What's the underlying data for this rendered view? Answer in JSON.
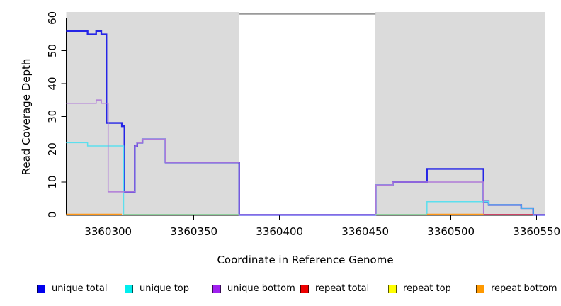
{
  "figure": {
    "xlabel": "Coordinate in Reference Genome",
    "ylabel": "Read Coverage Depth"
  },
  "chart_data": {
    "type": "line",
    "subtype": "step-coverage-plot",
    "title": "",
    "xlabel": "Coordinate in Reference Genome",
    "ylabel": "Read Coverage Depth",
    "xlim": [
      3360275.5,
      3360555
    ],
    "ylim": [
      0,
      62
    ],
    "x_ticks": [
      "3360300",
      "3360350",
      "3360400",
      "3360450",
      "3360500",
      "3360550"
    ],
    "y_ticks": [
      "0",
      "10",
      "20",
      "30",
      "40",
      "50",
      "60"
    ],
    "grid": false,
    "legend_position": "bottom",
    "panel_regions": [
      {
        "name": "covered-region-left",
        "x1": 3360275.5,
        "x2": 3360376.5,
        "fill": "#dbdbdb"
      },
      {
        "name": "covered-region-right",
        "x1": 3360456,
        "x2": 3360555,
        "fill": "#dbdbdb"
      }
    ],
    "gap_top_bar": {
      "name": "gap-top-border",
      "x1": 3360376.5,
      "x2": 3360456,
      "y": 61.2,
      "color": "#9a9a9a"
    },
    "series": [
      {
        "name": "unique total",
        "color": "#2525e6",
        "width": 2.3,
        "steps": [
          [
            3360275.5,
            56
          ],
          [
            3360288,
            55
          ],
          [
            3360293,
            56
          ],
          [
            3360296,
            55
          ],
          [
            3360299,
            28
          ],
          [
            3360308,
            27
          ],
          [
            3360309.5,
            7
          ],
          [
            3360315.5,
            21
          ],
          [
            3360317,
            22
          ],
          [
            3360320,
            23
          ],
          [
            3360333.5,
            16
          ],
          [
            3360376.5,
            0
          ],
          [
            3360456,
            9
          ],
          [
            3360466,
            10
          ],
          [
            3360486,
            14
          ],
          [
            3360519,
            4
          ],
          [
            3360522,
            3
          ],
          [
            3360541,
            2
          ],
          [
            3360548,
            0
          ],
          [
            3360555,
            0
          ]
        ]
      },
      {
        "name": "unique top",
        "color": "#5cdfee",
        "width": 1.5,
        "steps": [
          [
            3360275.5,
            22
          ],
          [
            3360288,
            21
          ],
          [
            3360309,
            0
          ],
          [
            3360486,
            4
          ],
          [
            3360522,
            3
          ],
          [
            3360541,
            2
          ],
          [
            3360548,
            0
          ],
          [
            3360555,
            0
          ]
        ]
      },
      {
        "name": "unique bottom",
        "color": "#b07bd8",
        "width": 1.5,
        "steps": [
          [
            3360275.5,
            34
          ],
          [
            3360293,
            35
          ],
          [
            3360296,
            34
          ],
          [
            3360300,
            7
          ],
          [
            3360315.5,
            21
          ],
          [
            3360317,
            22
          ],
          [
            3360320,
            23
          ],
          [
            3360333.5,
            16
          ],
          [
            3360376.5,
            0
          ],
          [
            3360456,
            9
          ],
          [
            3360466,
            10
          ],
          [
            3360519,
            0
          ],
          [
            3360555,
            0
          ]
        ]
      },
      {
        "name": "repeat total",
        "color": "#cc4466",
        "width": 1.5,
        "zero_segments": [
          [
            3360519,
            3360548
          ]
        ]
      },
      {
        "name": "repeat top",
        "color": "#8fce9c",
        "width": 1.5,
        "zero_segments": [
          [
            3360309,
            3360376.5
          ],
          [
            3360456,
            3360486
          ]
        ]
      },
      {
        "name": "repeat bottom",
        "color": "#ff9718",
        "width": 1.8,
        "zero_segments": [
          [
            3360275.5,
            3360308
          ],
          [
            3360486,
            3360519
          ]
        ]
      }
    ]
  },
  "legend": {
    "items": [
      {
        "label": "unique total",
        "fill": "#0000ee"
      },
      {
        "label": "unique top",
        "fill": "#00eeee"
      },
      {
        "label": "unique bottom",
        "fill": "#a020f0"
      },
      {
        "label": "repeat total",
        "fill": "#ee0000"
      },
      {
        "label": "repeat top",
        "fill": "#ffff00"
      },
      {
        "label": "repeat bottom",
        "fill": "#ff9900"
      }
    ]
  }
}
